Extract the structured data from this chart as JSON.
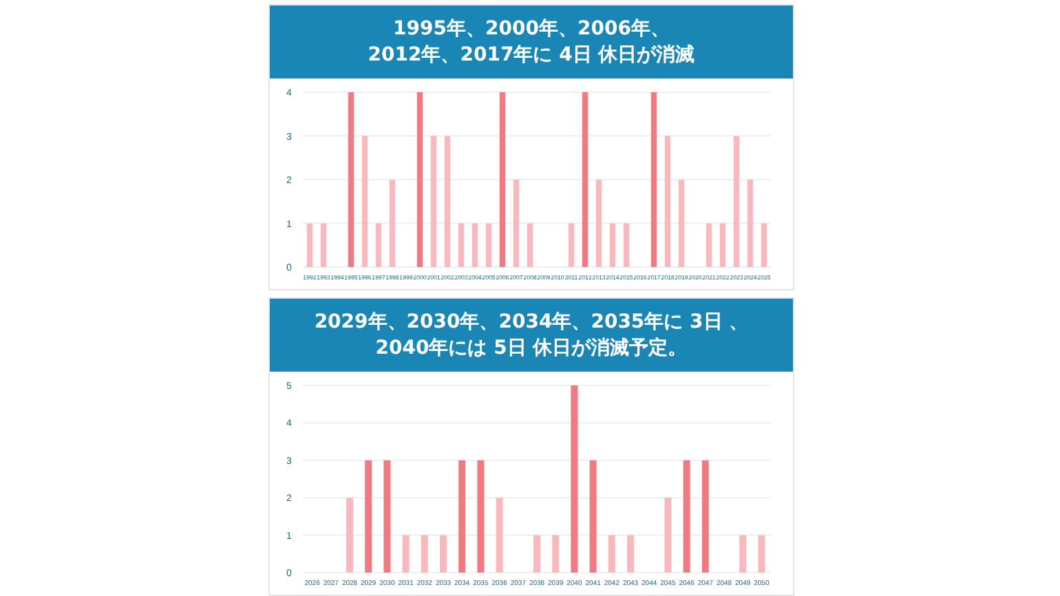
{
  "chart_data": [
    {
      "type": "bar",
      "title": "1995年、2000年、2006年、\n2012年、2017年に 4日 休日が消滅",
      "categories": [
        "1992",
        "1993",
        "1994",
        "1995",
        "1996",
        "1997",
        "1998",
        "1999",
        "2000",
        "2001",
        "2002",
        "2003",
        "2004",
        "2005",
        "2006",
        "2007",
        "2008",
        "2009",
        "2010",
        "2011",
        "2012",
        "2013",
        "2014",
        "2015",
        "2016",
        "2017",
        "2018",
        "2019",
        "2020",
        "2021",
        "2022",
        "2023",
        "2024",
        "2025"
      ],
      "values": [
        1,
        1,
        0,
        4,
        3,
        1,
        2,
        0,
        4,
        3,
        3,
        1,
        1,
        1,
        4,
        2,
        1,
        0,
        0,
        1,
        4,
        2,
        1,
        1,
        0,
        4,
        3,
        2,
        0,
        1,
        1,
        3,
        2,
        1
      ],
      "colors": [
        "#f9b8bc",
        "#f9b8bc",
        "#f9b8bc",
        "#f07a80",
        "#f9b8bc",
        "#f9b8bc",
        "#f9b8bc",
        "#f9b8bc",
        "#f07a80",
        "#f9b8bc",
        "#f9b8bc",
        "#f9b8bc",
        "#f9b8bc",
        "#f9b8bc",
        "#f07a80",
        "#f9b8bc",
        "#f9b8bc",
        "#f9b8bc",
        "#f9b8bc",
        "#f9b8bc",
        "#f07a80",
        "#f9b8bc",
        "#f9b8bc",
        "#f9b8bc",
        "#f9b8bc",
        "#f07a80",
        "#f9b8bc",
        "#f9b8bc",
        "#f9b8bc",
        "#f9b8bc",
        "#f9b8bc",
        "#f9b8bc",
        "#f9b8bc",
        "#f9b8bc"
      ],
      "ylim": [
        0,
        4
      ],
      "yticks": [
        0,
        1,
        2,
        3,
        4
      ],
      "grid": "y"
    },
    {
      "type": "bar",
      "title": "2029年、2030年、2034年、2035年に 3日 、\n2040年には 5日 休日が消滅予定。",
      "categories": [
        "2026",
        "2027",
        "2028",
        "2029",
        "2030",
        "2031",
        "2032",
        "2033",
        "2034",
        "2035",
        "2036",
        "2037",
        "2038",
        "2039",
        "2040",
        "2041",
        "2042",
        "2043",
        "2044",
        "2045",
        "2046",
        "2047",
        "2048",
        "2049",
        "2050"
      ],
      "values": [
        0,
        0,
        2,
        3,
        3,
        1,
        1,
        1,
        3,
        3,
        2,
        0,
        1,
        1,
        5,
        3,
        1,
        1,
        0,
        2,
        3,
        3,
        0,
        1,
        1
      ],
      "colors": [
        "#f9b8bc",
        "#f9b8bc",
        "#f9b8bc",
        "#f07a80",
        "#f07a80",
        "#f9b8bc",
        "#f9b8bc",
        "#f9b8bc",
        "#f07a80",
        "#f07a80",
        "#f9b8bc",
        "#f9b8bc",
        "#f9b8bc",
        "#f9b8bc",
        "#f07a80",
        "#f07a80",
        "#f9b8bc",
        "#f9b8bc",
        "#f9b8bc",
        "#f9b8bc",
        "#f07a80",
        "#f07a80",
        "#f9b8bc",
        "#f9b8bc",
        "#f9b8bc"
      ],
      "ylim": [
        0,
        5
      ],
      "yticks": [
        0,
        1,
        2,
        3,
        4,
        5
      ],
      "grid": "y"
    }
  ]
}
